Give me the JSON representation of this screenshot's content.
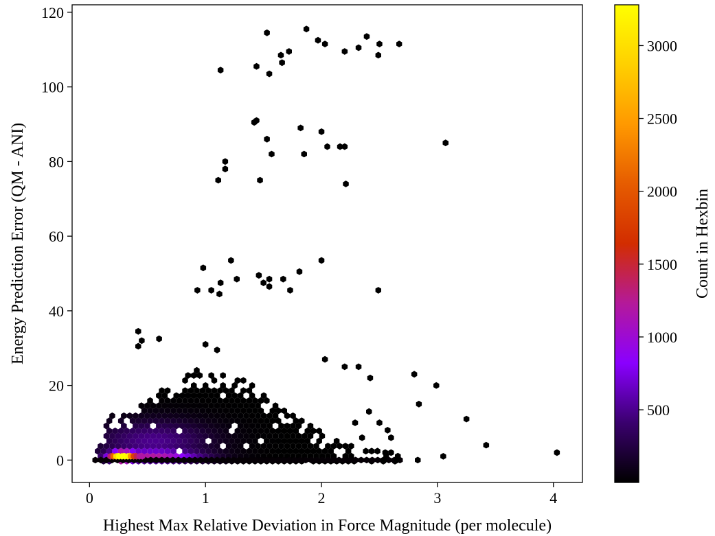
{
  "chart_data": {
    "type": "hexbin",
    "xlabel": "Highest Max Relative Deviation in Force Magnitude (per molecule)",
    "ylabel": "Energy Prediction Error (QM - ANI)",
    "xlim": [
      -0.15,
      4.25
    ],
    "ylim": [
      -6,
      122
    ],
    "xticks": [
      0,
      1,
      2,
      3,
      4
    ],
    "yticks": [
      0,
      20,
      40,
      60,
      80,
      100,
      120
    ],
    "colorbar": {
      "label": "Count in Hexbin",
      "range": [
        1,
        3280
      ],
      "ticks": [
        500,
        1000,
        1500,
        2000,
        2500,
        3000
      ],
      "colormap": "gnuplot",
      "stops": [
        "#000000",
        "#3a006e",
        "#8a00ff",
        "#b4199a",
        "#d22d00",
        "#e65c00",
        "#ff9900",
        "#ffd000",
        "#ffff00"
      ]
    },
    "dense_region": {
      "x_range": [
        0.05,
        2.7
      ],
      "y_range": [
        0,
        33
      ],
      "peak": {
        "x": 0.28,
        "y": 1,
        "count": 3280
      }
    },
    "outlier_points": [
      [
        0.42,
        34.5
      ],
      [
        0.42,
        30.5
      ],
      [
        0.45,
        32
      ],
      [
        0.6,
        32.5
      ],
      [
        1.0,
        31
      ],
      [
        1.1,
        29.5
      ],
      [
        1.13,
        104.5
      ],
      [
        1.44,
        105.5
      ],
      [
        1.55,
        103.5
      ],
      [
        1.53,
        114.5
      ],
      [
        1.65,
        108.5
      ],
      [
        1.66,
        106.5
      ],
      [
        1.72,
        109.5
      ],
      [
        1.87,
        115.5
      ],
      [
        1.97,
        112.5
      ],
      [
        2.03,
        111.5
      ],
      [
        2.2,
        109.5
      ],
      [
        2.32,
        110.5
      ],
      [
        2.39,
        113.5
      ],
      [
        2.49,
        108.5
      ],
      [
        2.5,
        111.5
      ],
      [
        2.67,
        111.5
      ],
      [
        1.42,
        90.5
      ],
      [
        1.44,
        91
      ],
      [
        1.53,
        86
      ],
      [
        1.57,
        82
      ],
      [
        1.82,
        89
      ],
      [
        1.85,
        82
      ],
      [
        2.0,
        88
      ],
      [
        2.05,
        84
      ],
      [
        2.16,
        84
      ],
      [
        2.2,
        84
      ],
      [
        2.21,
        74
      ],
      [
        3.07,
        85
      ],
      [
        1.11,
        75
      ],
      [
        1.17,
        80
      ],
      [
        1.17,
        78
      ],
      [
        1.47,
        75
      ],
      [
        0.98,
        51.5
      ],
      [
        1.22,
        53.5
      ],
      [
        1.27,
        48.5
      ],
      [
        1.46,
        49.5
      ],
      [
        1.5,
        47.5
      ],
      [
        1.55,
        46.5
      ],
      [
        1.55,
        48.5
      ],
      [
        1.67,
        48.5
      ],
      [
        1.73,
        45.5
      ],
      [
        1.81,
        50.5
      ],
      [
        2.0,
        53.5
      ],
      [
        2.49,
        45.5
      ],
      [
        0.93,
        45.5
      ],
      [
        1.05,
        45.5
      ],
      [
        1.12,
        44.5
      ],
      [
        1.13,
        47.5
      ],
      [
        2.03,
        27
      ],
      [
        2.2,
        25
      ],
      [
        2.32,
        25
      ],
      [
        2.42,
        22
      ],
      [
        2.8,
        23
      ],
      [
        2.99,
        20
      ],
      [
        2.84,
        15
      ],
      [
        3.25,
        11
      ],
      [
        3.42,
        4
      ],
      [
        3.05,
        1
      ],
      [
        2.83,
        0
      ],
      [
        4.03,
        2
      ],
      [
        2.5,
        10
      ],
      [
        2.41,
        13
      ],
      [
        2.57,
        8
      ],
      [
        2.6,
        6
      ],
      [
        2.35,
        6
      ],
      [
        2.29,
        10
      ],
      [
        2.65,
        0
      ],
      [
        2.6,
        2
      ],
      [
        2.55,
        2
      ],
      [
        2.54,
        0
      ]
    ]
  }
}
